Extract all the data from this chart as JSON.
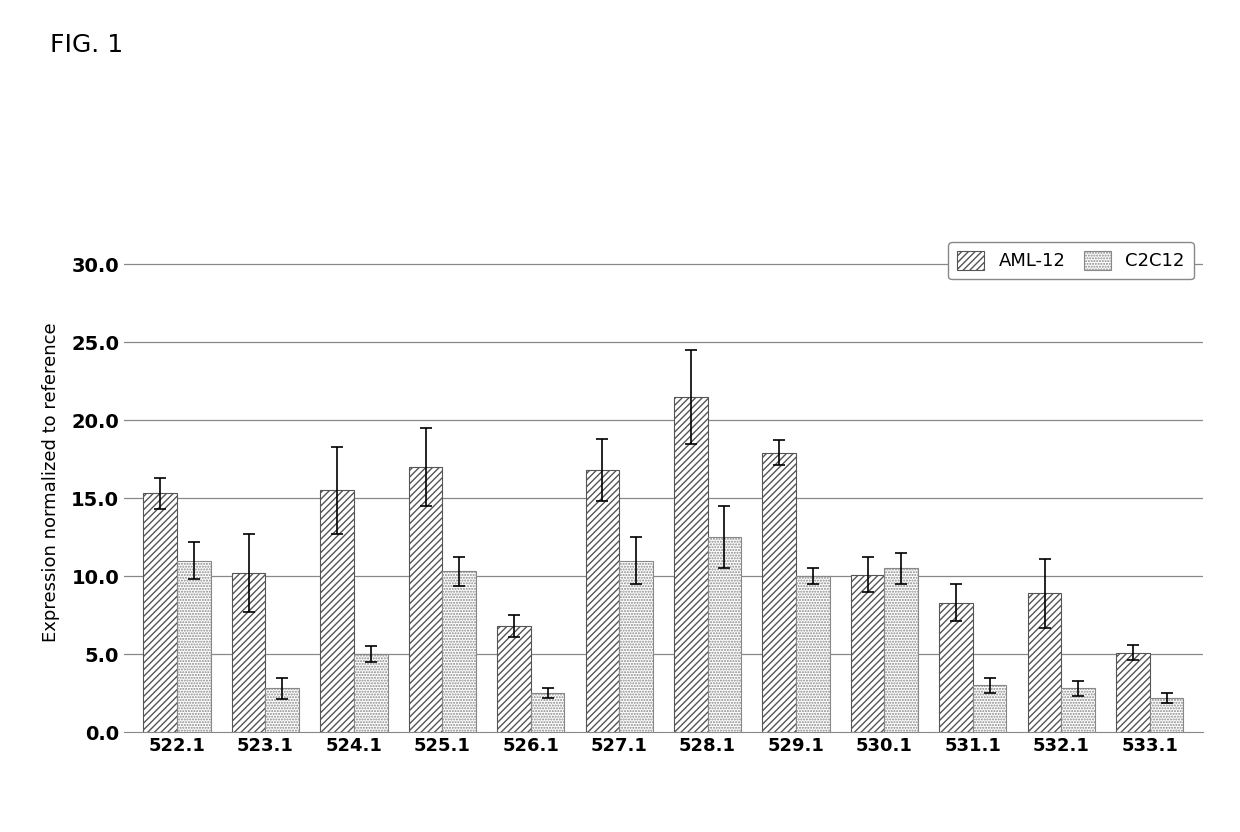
{
  "categories": [
    "522.1",
    "523.1",
    "524.1",
    "525.1",
    "526.1",
    "527.1",
    "528.1",
    "529.1",
    "530.1",
    "531.1",
    "532.1",
    "533.1"
  ],
  "aml12_values": [
    15.3,
    10.2,
    15.5,
    17.0,
    6.8,
    16.8,
    21.5,
    17.9,
    10.1,
    8.3,
    8.9,
    5.1
  ],
  "aml12_errors": [
    1.0,
    2.5,
    2.8,
    2.5,
    0.7,
    2.0,
    3.0,
    0.8,
    1.1,
    1.2,
    2.2,
    0.5
  ],
  "c2c12_values": [
    11.0,
    2.8,
    5.0,
    10.3,
    2.5,
    11.0,
    12.5,
    10.0,
    10.5,
    3.0,
    2.8,
    2.2
  ],
  "c2c12_errors": [
    1.2,
    0.7,
    0.5,
    0.9,
    0.3,
    1.5,
    2.0,
    0.5,
    1.0,
    0.5,
    0.5,
    0.3
  ],
  "ylabel": "Expression normalized to reference",
  "ylim": [
    0.0,
    32.0
  ],
  "yticks": [
    0.0,
    5.0,
    10.0,
    15.0,
    20.0,
    25.0,
    30.0
  ],
  "legend_labels": [
    "AML-12",
    "C2C12"
  ],
  "bar_width": 0.38,
  "fig_title": "FIG. 1",
  "background_color": "#ffffff"
}
